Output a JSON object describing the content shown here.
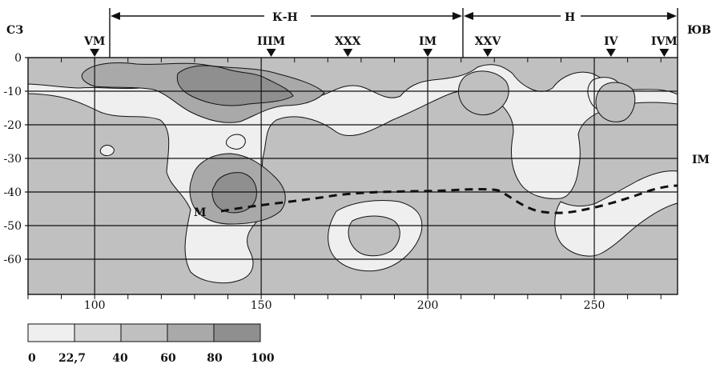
{
  "header": {
    "left_corner": "СЗ",
    "right_corner": "ЮВ",
    "spans": [
      {
        "id": "kn",
        "label": "К-Н"
      },
      {
        "id": "n",
        "label": "Н"
      }
    ],
    "markers": [
      {
        "id": "vm",
        "label": "VM",
        "x": 100
      },
      {
        "id": "iiim",
        "label": "IIIM",
        "x": 153
      },
      {
        "id": "xxx",
        "label": "XXX",
        "x": 176
      },
      {
        "id": "im",
        "label": "IM",
        "x": 200
      },
      {
        "id": "xxv",
        "label": "XXV",
        "x": 218
      },
      {
        "id": "iv",
        "label": "IV",
        "x": 255
      },
      {
        "id": "ivm",
        "label": "IVM",
        "x": 271
      }
    ]
  },
  "right_label": "IM",
  "curve_label": "M",
  "axes": {
    "y_ticks": [
      "0",
      "-10",
      "-20",
      "-30",
      "-40",
      "-50",
      "-60"
    ],
    "x_ticks": [
      "100",
      "150",
      "200",
      "250"
    ]
  },
  "legend": {
    "labels": [
      "0",
      "22,7",
      "40",
      "60",
      "80",
      "100"
    ],
    "colors": [
      "#efefef",
      "#d7d7d7",
      "#c0c0c0",
      "#a9a9a9",
      "#8f8f8f"
    ]
  },
  "colors": {
    "lightest": "#efefef",
    "light": "#d7d7d7",
    "mid": "#c0c0c0",
    "dark": "#a9a9a9",
    "darkest": "#8f8f8f",
    "line": "#111111"
  }
}
